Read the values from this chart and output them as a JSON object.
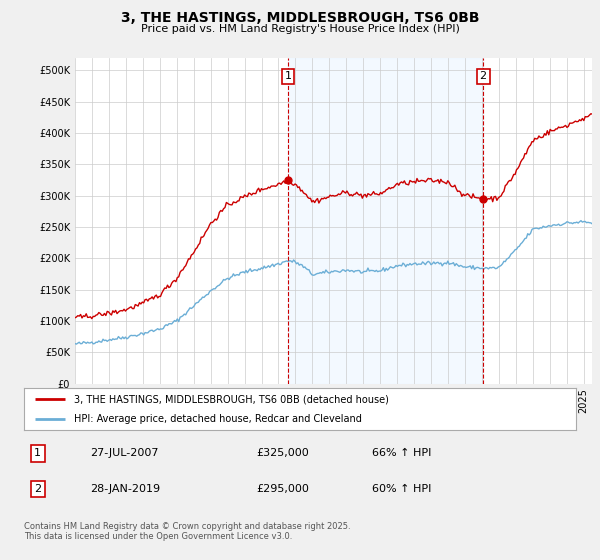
{
  "title": "3, THE HASTINGS, MIDDLESBROUGH, TS6 0BB",
  "subtitle": "Price paid vs. HM Land Registry's House Price Index (HPI)",
  "legend_line1": "3, THE HASTINGS, MIDDLESBROUGH, TS6 0BB (detached house)",
  "legend_line2": "HPI: Average price, detached house, Redcar and Cleveland",
  "annotation1_label": "1",
  "annotation1_date": "27-JUL-2007",
  "annotation1_price": "£325,000",
  "annotation1_hpi": "66% ↑ HPI",
  "annotation2_label": "2",
  "annotation2_date": "28-JAN-2019",
  "annotation2_price": "£295,000",
  "annotation2_hpi": "60% ↑ HPI",
  "footer": "Contains HM Land Registry data © Crown copyright and database right 2025.\nThis data is licensed under the Open Government Licence v3.0.",
  "vline1_x": 2007.57,
  "vline2_x": 2019.07,
  "ylim": [
    0,
    520000
  ],
  "xlim_start": 1995.0,
  "xlim_end": 2025.5,
  "hpi_color": "#6baed6",
  "price_color": "#cc0000",
  "vline_color": "#cc0000",
  "shade_color": "#ddeeff",
  "background_color": "#f0f0f0",
  "plot_bg_color": "#ffffff",
  "dot1_price": 325000,
  "dot1_hpi": 196000,
  "dot2_price": 295000,
  "dot2_hpi": 184000
}
